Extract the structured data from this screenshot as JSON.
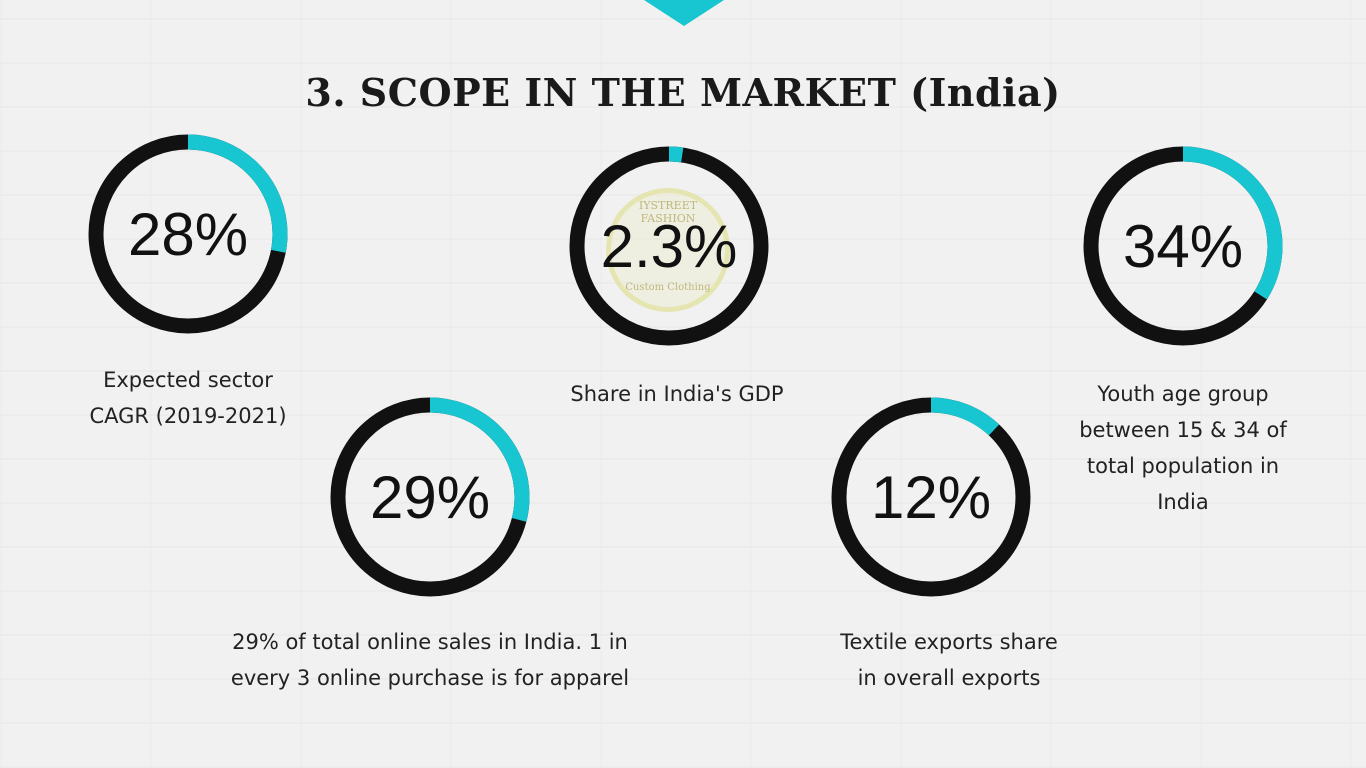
{
  "title": "3. SCOPE IN THE MARKET (India)",
  "colors": {
    "accent": "#17c6d0",
    "ring": "#111111"
  },
  "watermark": {
    "top_text": "IYSTREET FASHION",
    "bottom_text": "Custom Clothing"
  },
  "chart_data": {
    "type": "pie",
    "stats": [
      {
        "value": 28,
        "label": "28%",
        "caption": [
          "Expected sector",
          "CAGR (2019-2021)"
        ]
      },
      {
        "value": 2.3,
        "label": "2.3%",
        "caption": [
          "Share in India's GDP"
        ]
      },
      {
        "value": 34,
        "label": "34%",
        "caption": [
          "Youth age group",
          "between 15 & 34 of",
          "total population in",
          "India"
        ]
      },
      {
        "value": 29,
        "label": "29%",
        "caption": [
          "29% of total online sales in India. 1 in",
          "every 3 online purchase is for apparel"
        ]
      },
      {
        "value": 12,
        "label": "12%",
        "caption": [
          "Textile exports share",
          "in overall exports"
        ]
      }
    ]
  }
}
